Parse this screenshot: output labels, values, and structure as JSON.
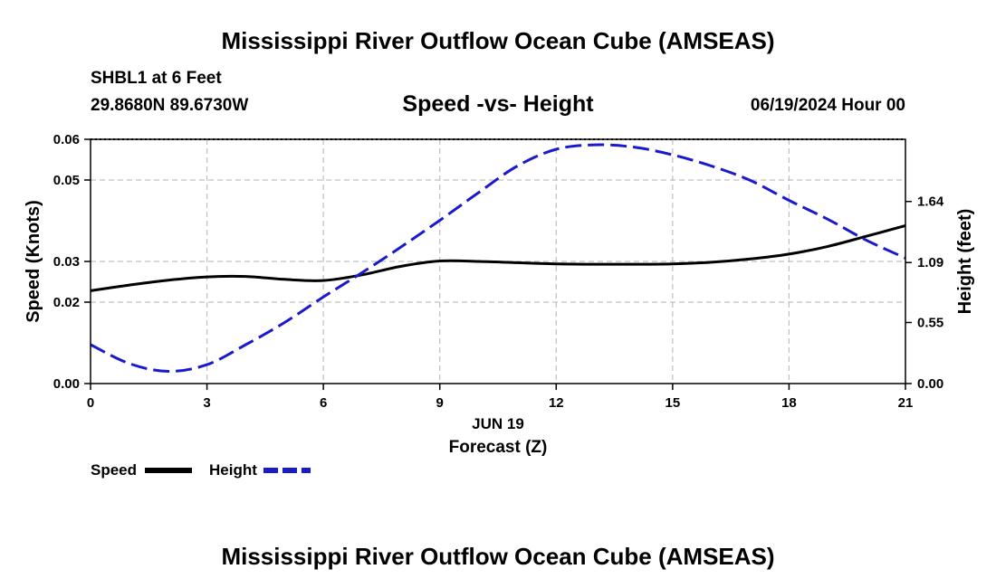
{
  "header": {
    "title": "Mississippi River Outflow Ocean Cube (AMSEAS)",
    "station": "SHBL1 at 6 Feet",
    "coords": "29.8680N  89.6730W",
    "subtitle": "Speed -vs- Height",
    "datetime": "06/19/2024 Hour 00"
  },
  "footer": {
    "title": "Mississippi River Outflow Ocean Cube (AMSEAS)"
  },
  "chart_data": {
    "type": "line",
    "title": "Speed -vs- Height",
    "xlabel": "Forecast (Z)",
    "xsublabel": "JUN 19",
    "ylabel": "Speed (Knots)",
    "y2label": "Height (feet)",
    "xlim": [
      0,
      21
    ],
    "ylim": [
      0,
      0.06
    ],
    "y2lim": [
      0,
      2.2
    ],
    "x_ticks": [
      0,
      3,
      6,
      9,
      12,
      15,
      18,
      21
    ],
    "y_ticks": [
      0.0,
      0.02,
      0.03,
      0.05,
      0.06
    ],
    "y_tick_labels": [
      "0.00",
      "0.02",
      "0.03",
      "0.05",
      "0.06"
    ],
    "y2_ticks": [
      0.0,
      0.55,
      1.09,
      1.64
    ],
    "y2_tick_labels": [
      "0.00",
      "0.55",
      "1.09",
      "1.64"
    ],
    "grid": true,
    "legend_position": "bottom-left",
    "series": [
      {
        "name": "Speed",
        "axis": "left",
        "color": "#000000",
        "dash": "solid",
        "x": [
          0,
          1,
          2,
          3,
          4,
          5,
          6,
          7,
          8,
          9,
          10,
          11,
          12,
          13,
          14,
          15,
          16,
          17,
          18,
          19,
          20,
          21
        ],
        "values": [
          0.0228,
          0.0242,
          0.0254,
          0.0262,
          0.0263,
          0.0256,
          0.0253,
          0.0267,
          0.0288,
          0.0301,
          0.03,
          0.0297,
          0.0294,
          0.0293,
          0.0293,
          0.0294,
          0.0298,
          0.0306,
          0.0318,
          0.0337,
          0.0362,
          0.0388
        ]
      },
      {
        "name": "Height",
        "axis": "right",
        "color": "#1a1acc",
        "dash": "dashed",
        "x": [
          0,
          1,
          2,
          3,
          4,
          5,
          6,
          7,
          8,
          9,
          10,
          11,
          12,
          13,
          14,
          15,
          16,
          17,
          18,
          19,
          20,
          21
        ],
        "values": [
          0.35,
          0.18,
          0.11,
          0.17,
          0.35,
          0.55,
          0.78,
          1.0,
          1.23,
          1.47,
          1.72,
          1.96,
          2.11,
          2.15,
          2.13,
          2.06,
          1.96,
          1.83,
          1.65,
          1.48,
          1.29,
          1.13
        ]
      }
    ]
  }
}
